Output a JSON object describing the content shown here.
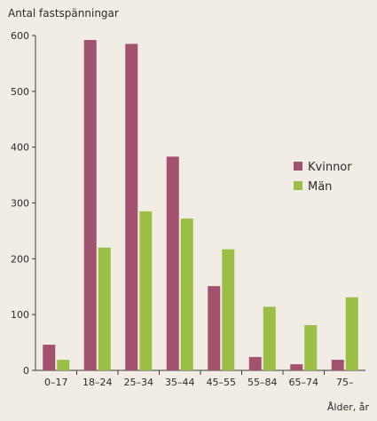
{
  "chart_data": {
    "type": "bar",
    "ylabel": "Antal fastspänningar",
    "xlabel": "Ålder, år",
    "ylim": [
      0,
      600
    ],
    "yticks": [
      0,
      100,
      200,
      300,
      400,
      500,
      600
    ],
    "grid": false,
    "legend_position": "right",
    "categories": [
      "0–17",
      "18–24",
      "25–34",
      "35–44",
      "45–55",
      "55–84",
      "65–74",
      "75–"
    ],
    "series": [
      {
        "name": "Kvinnor",
        "color": "#a3526e",
        "values": [
          46,
          592,
          585,
          383,
          151,
          24,
          11,
          19
        ]
      },
      {
        "name": "Män",
        "color": "#9bbf45",
        "values": [
          19,
          220,
          285,
          272,
          217,
          114,
          81,
          131
        ]
      }
    ]
  }
}
